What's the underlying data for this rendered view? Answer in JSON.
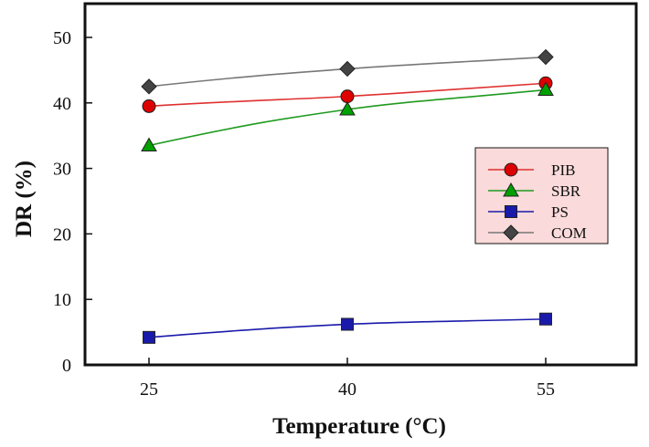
{
  "chart_data": {
    "type": "line",
    "xlabel": "Temperature (°C)",
    "ylabel": "DR (%)",
    "x": [
      25,
      40,
      55
    ],
    "x_tick_labels": [
      "25",
      "40",
      "55"
    ],
    "ylim": [
      0,
      55
    ],
    "y_ticks": [
      0,
      10,
      20,
      30,
      40,
      50
    ],
    "y_tick_labels": [
      "0",
      "10",
      "20",
      "30",
      "40",
      "50"
    ],
    "grid": false,
    "legend_position": "right",
    "legend_background": "#fadada",
    "series": [
      {
        "name": "PIB",
        "values": [
          39.5,
          41,
          43
        ],
        "color": "#dd0000",
        "line_color": "#e03030",
        "marker": "circle"
      },
      {
        "name": "SBR",
        "values": [
          33.5,
          39,
          42
        ],
        "color": "#00a000",
        "line_color": "#1f9a1f",
        "marker": "triangle"
      },
      {
        "name": "PS",
        "values": [
          4.2,
          6.2,
          7
        ],
        "color": "#1a1aaa",
        "line_color": "#1a1aaa",
        "marker": "square"
      },
      {
        "name": "COM",
        "values": [
          42.5,
          45.2,
          47
        ],
        "color": "#444444",
        "line_color": "#777777",
        "marker": "diamond"
      }
    ]
  }
}
